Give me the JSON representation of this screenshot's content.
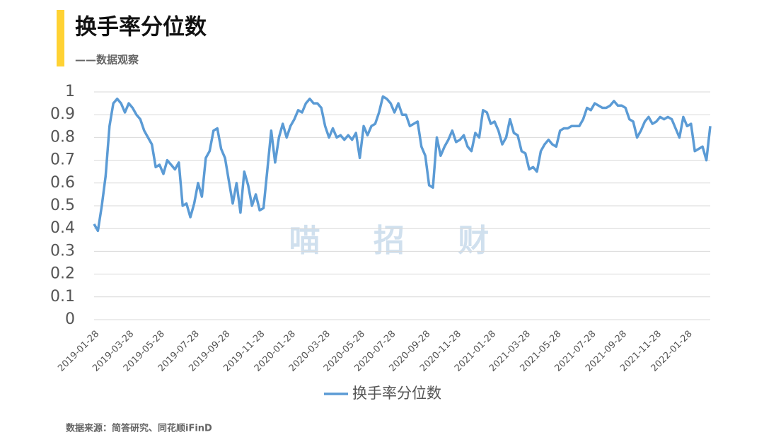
{
  "chart_data": {
    "type": "line",
    "title": "换手率分位数",
    "subtitle": "——数据观察",
    "watermark": "喵 招 财",
    "source": "数据来源：简答研究、同花顺iFinD",
    "categories": [
      "2019-01-28",
      null,
      null,
      null,
      null,
      null,
      null,
      null,
      null,
      "2019-03-28",
      null,
      null,
      null,
      null,
      null,
      null,
      null,
      "2019-05-28",
      null,
      null,
      null,
      null,
      null,
      null,
      null,
      null,
      "2019-07-28",
      null,
      null,
      null,
      null,
      null,
      null,
      null,
      "2019-09-28",
      null,
      null,
      null,
      null,
      null,
      null,
      null,
      null,
      "2019-11-28",
      null,
      null,
      null,
      null,
      null,
      null,
      null,
      "2020-01-28",
      null,
      null,
      null,
      null,
      null,
      null,
      null,
      null,
      "2020-03-28",
      null,
      null,
      null,
      null,
      null,
      null,
      null,
      null,
      "2020-05-28",
      null,
      null,
      null,
      null,
      null,
      null,
      null,
      "2020-07-28",
      null,
      null,
      null,
      null,
      null,
      null,
      null,
      null,
      "2020-09-28",
      null,
      null,
      null,
      null,
      null,
      null,
      null,
      "2020-11-28",
      null,
      null,
      null,
      null,
      null,
      null,
      null,
      null,
      "2021-01-28",
      null,
      null,
      null,
      null,
      null,
      null,
      null,
      null,
      "2021-03-28",
      null,
      null,
      null,
      null,
      null,
      null,
      null,
      "2021-05-28",
      null,
      null,
      null,
      null,
      null,
      null,
      null,
      null,
      "2021-07-28",
      null,
      null,
      null,
      null,
      null,
      null,
      null,
      "2021-09-28",
      null,
      null,
      null,
      null,
      null,
      null,
      null,
      null,
      "2021-11-28",
      null,
      null,
      null,
      null,
      null,
      null,
      null,
      "2022-01-28",
      null,
      null,
      null,
      null,
      null,
      null
    ],
    "series": [
      {
        "name": "换手率分位数",
        "color": "#5b9bd5",
        "values": [
          0.42,
          0.39,
          0.5,
          0.63,
          0.85,
          0.95,
          0.97,
          0.95,
          0.91,
          0.95,
          0.93,
          0.9,
          0.88,
          0.83,
          0.8,
          0.77,
          0.67,
          0.68,
          0.64,
          0.7,
          0.68,
          0.66,
          0.69,
          0.5,
          0.51,
          0.45,
          0.51,
          0.6,
          0.54,
          0.71,
          0.74,
          0.83,
          0.84,
          0.75,
          0.71,
          0.61,
          0.51,
          0.6,
          0.47,
          0.65,
          0.59,
          0.5,
          0.55,
          0.48,
          0.49,
          0.66,
          0.83,
          0.69,
          0.8,
          0.86,
          0.8,
          0.85,
          0.88,
          0.92,
          0.91,
          0.95,
          0.97,
          0.95,
          0.95,
          0.93,
          0.85,
          0.8,
          0.84,
          0.8,
          0.81,
          0.79,
          0.81,
          0.79,
          0.82,
          0.71,
          0.85,
          0.81,
          0.85,
          0.86,
          0.91,
          0.98,
          0.97,
          0.95,
          0.91,
          0.95,
          0.9,
          0.9,
          0.85,
          0.86,
          0.87,
          0.76,
          0.72,
          0.59,
          0.58,
          0.8,
          0.72,
          0.76,
          0.79,
          0.83,
          0.78,
          0.79,
          0.81,
          0.76,
          0.74,
          0.82,
          0.8,
          0.92,
          0.91,
          0.86,
          0.87,
          0.83,
          0.77,
          0.8,
          0.88,
          0.82,
          0.81,
          0.74,
          0.73,
          0.66,
          0.67,
          0.65,
          0.74,
          0.77,
          0.79,
          0.77,
          0.76,
          0.83,
          0.84,
          0.84,
          0.85,
          0.85,
          0.85,
          0.88,
          0.93,
          0.92,
          0.95,
          0.94,
          0.93,
          0.93,
          0.94,
          0.96,
          0.94,
          0.94,
          0.93,
          0.88,
          0.87,
          0.8,
          0.83,
          0.87,
          0.89,
          0.86,
          0.87,
          0.89,
          0.88,
          0.89,
          0.88,
          0.84,
          0.8,
          0.89,
          0.85,
          0.86,
          0.74,
          0.75,
          0.76,
          0.7,
          0.85
        ]
      }
    ],
    "ylim": [
      0,
      1
    ],
    "yticks": [
      0,
      0.1,
      0.2,
      0.3,
      0.4,
      0.5,
      0.6,
      0.7,
      0.8,
      0.9,
      1
    ],
    "grid": true,
    "legend": "bottom"
  }
}
